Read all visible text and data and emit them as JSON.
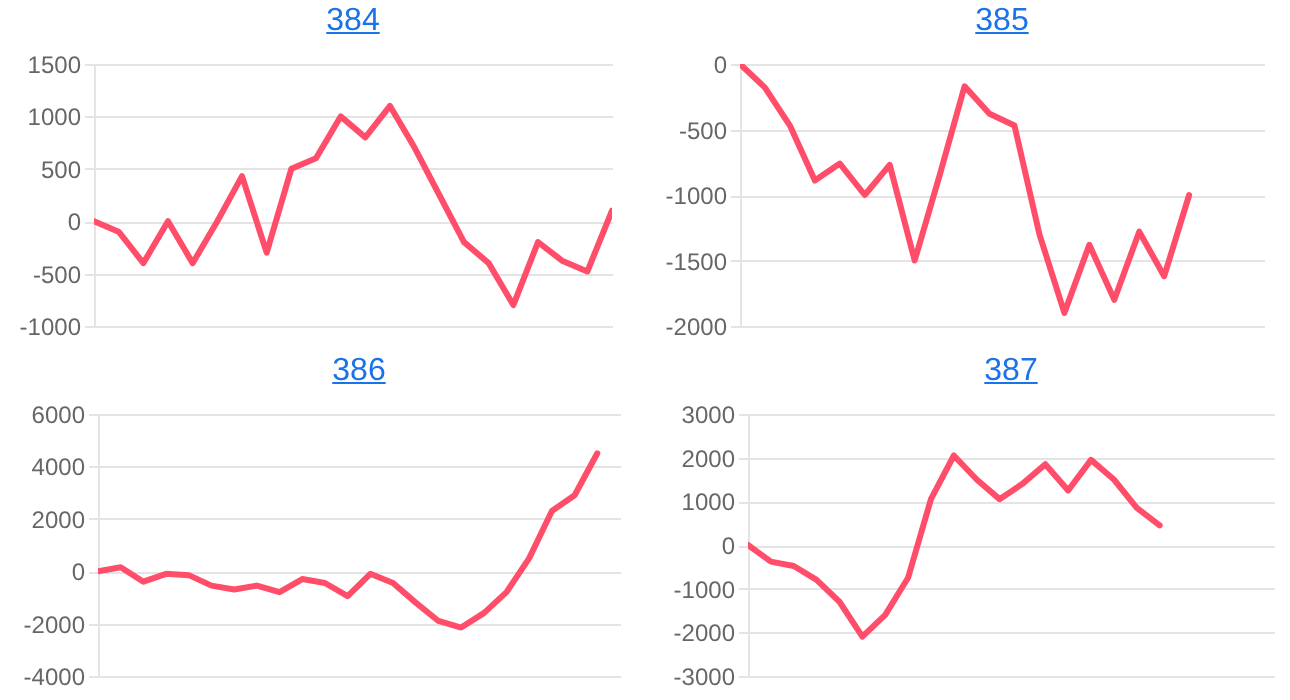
{
  "chart_data": [
    {
      "type": "line",
      "title": "384",
      "categories": [
        null,
        null,
        null,
        null,
        null,
        null,
        null,
        null,
        null,
        null,
        null,
        null,
        null,
        null,
        null,
        null,
        null,
        null,
        null,
        null,
        null,
        null
      ],
      "series": [
        {
          "color": "#ff4d6a",
          "values": [
            0,
            -100,
            -400,
            0,
            -400,
            0,
            430,
            -300,
            500,
            600,
            1000,
            800,
            1100,
            700,
            250,
            -200,
            -400,
            -800,
            -200,
            -380,
            -480,
            100
          ]
        }
      ],
      "ylim": [
        -1000,
        1500
      ],
      "yticks": [
        -1000,
        -500,
        0,
        500,
        1000,
        1500
      ],
      "grid": "y",
      "tick_labels": "y",
      "marker": "none",
      "line_style": "solid"
    },
    {
      "type": "line",
      "title": "385",
      "categories": [
        null,
        null,
        null,
        null,
        null,
        null,
        null,
        null,
        null,
        null,
        null,
        null,
        null,
        null,
        null,
        null,
        null,
        null,
        null,
        null,
        null,
        null
      ],
      "series": [
        {
          "color": "#ff4d6a",
          "values": [
            0,
            -180,
            -470,
            -890,
            -760,
            -1000,
            -770,
            -1500,
            -850,
            -170,
            -380,
            -470,
            -1300,
            -1900,
            -1380,
            -1800,
            -1280,
            -1620,
            -1000,
            null,
            null,
            null
          ]
        }
      ],
      "ylim": [
        -2000,
        0
      ],
      "yticks": [
        -2000,
        -1500,
        -1000,
        -500,
        0
      ],
      "grid": "y",
      "tick_labels": "y",
      "marker": "none",
      "line_style": "solid"
    },
    {
      "type": "line",
      "title": "386",
      "categories": [
        null,
        null,
        null,
        null,
        null,
        null,
        null,
        null,
        null,
        null,
        null,
        null,
        null,
        null,
        null,
        null,
        null,
        null,
        null,
        null,
        null,
        null,
        null,
        null
      ],
      "series": [
        {
          "color": "#ff4d6a",
          "values": [
            0,
            150,
            -400,
            -100,
            -150,
            -550,
            -700,
            -550,
            -800,
            -300,
            -450,
            -950,
            -100,
            -450,
            -1200,
            -1900,
            -2150,
            -1600,
            -800,
            500,
            2300,
            2900,
            4500,
            null
          ]
        }
      ],
      "ylim": [
        -4000,
        6000
      ],
      "yticks": [
        -4000,
        -2000,
        0,
        2000,
        4000,
        6000
      ],
      "grid": "y",
      "tick_labels": "y",
      "marker": "none",
      "line_style": "solid"
    },
    {
      "type": "line",
      "title": "387",
      "categories": [
        null,
        null,
        null,
        null,
        null,
        null,
        null,
        null,
        null,
        null,
        null,
        null,
        null,
        null,
        null,
        null,
        null,
        null,
        null,
        null,
        null,
        null,
        null,
        null
      ],
      "series": [
        {
          "color": "#ff4d6a",
          "values": [
            0,
            -380,
            -480,
            -800,
            -1300,
            -2100,
            -1600,
            -750,
            1050,
            2050,
            1500,
            1050,
            1400,
            1850,
            1250,
            1950,
            1500,
            850,
            450,
            null,
            null,
            null,
            null,
            null
          ]
        }
      ],
      "ylim": [
        -3000,
        3000
      ],
      "yticks": [
        -3000,
        -2000,
        -1000,
        0,
        1000,
        2000,
        3000
      ],
      "grid": "y",
      "tick_labels": "y",
      "marker": "none",
      "line_style": "solid"
    }
  ]
}
